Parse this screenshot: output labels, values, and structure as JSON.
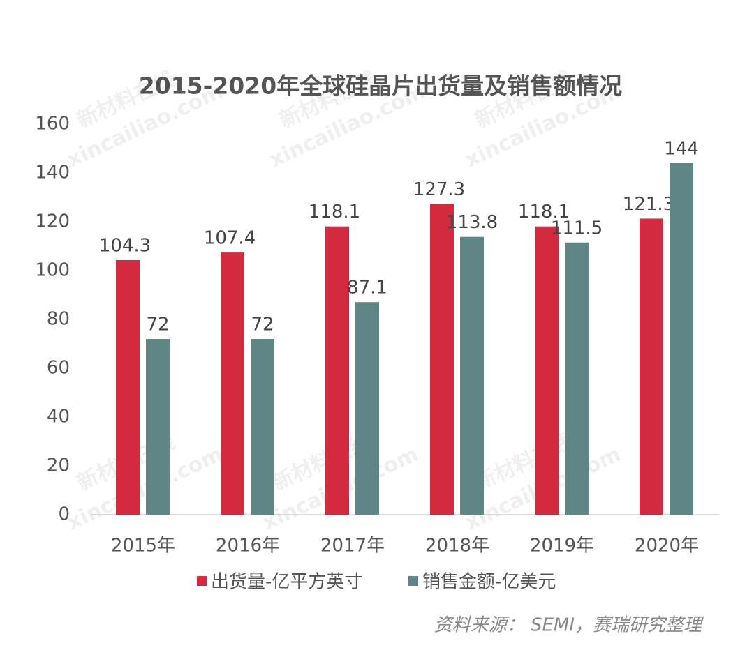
{
  "chart_data": {
    "type": "bar",
    "title": "2015-2020年全球硅晶片出货量及销售额情况",
    "categories": [
      "2015年",
      "2016年",
      "2017年",
      "2018年",
      "2019年",
      "2020年"
    ],
    "series": [
      {
        "name": "出货量-亿平方英寸",
        "color": "#d42a40",
        "values": [
          104.3,
          107.4,
          118.1,
          127.3,
          118.1,
          121.3
        ]
      },
      {
        "name": "销售金额-亿美元",
        "color": "#5f8584",
        "values": [
          72,
          72,
          87.1,
          113.8,
          111.5,
          144
        ]
      }
    ],
    "ylim": [
      0,
      160
    ],
    "yticks": [
      0,
      20,
      40,
      60,
      80,
      100,
      120,
      140,
      160
    ],
    "grid": false,
    "legend": "bottom"
  },
  "source": "资料来源： SEMI，赛瑞研究整理",
  "watermark": [
    "新材料在线",
    "xincailiao.com"
  ]
}
